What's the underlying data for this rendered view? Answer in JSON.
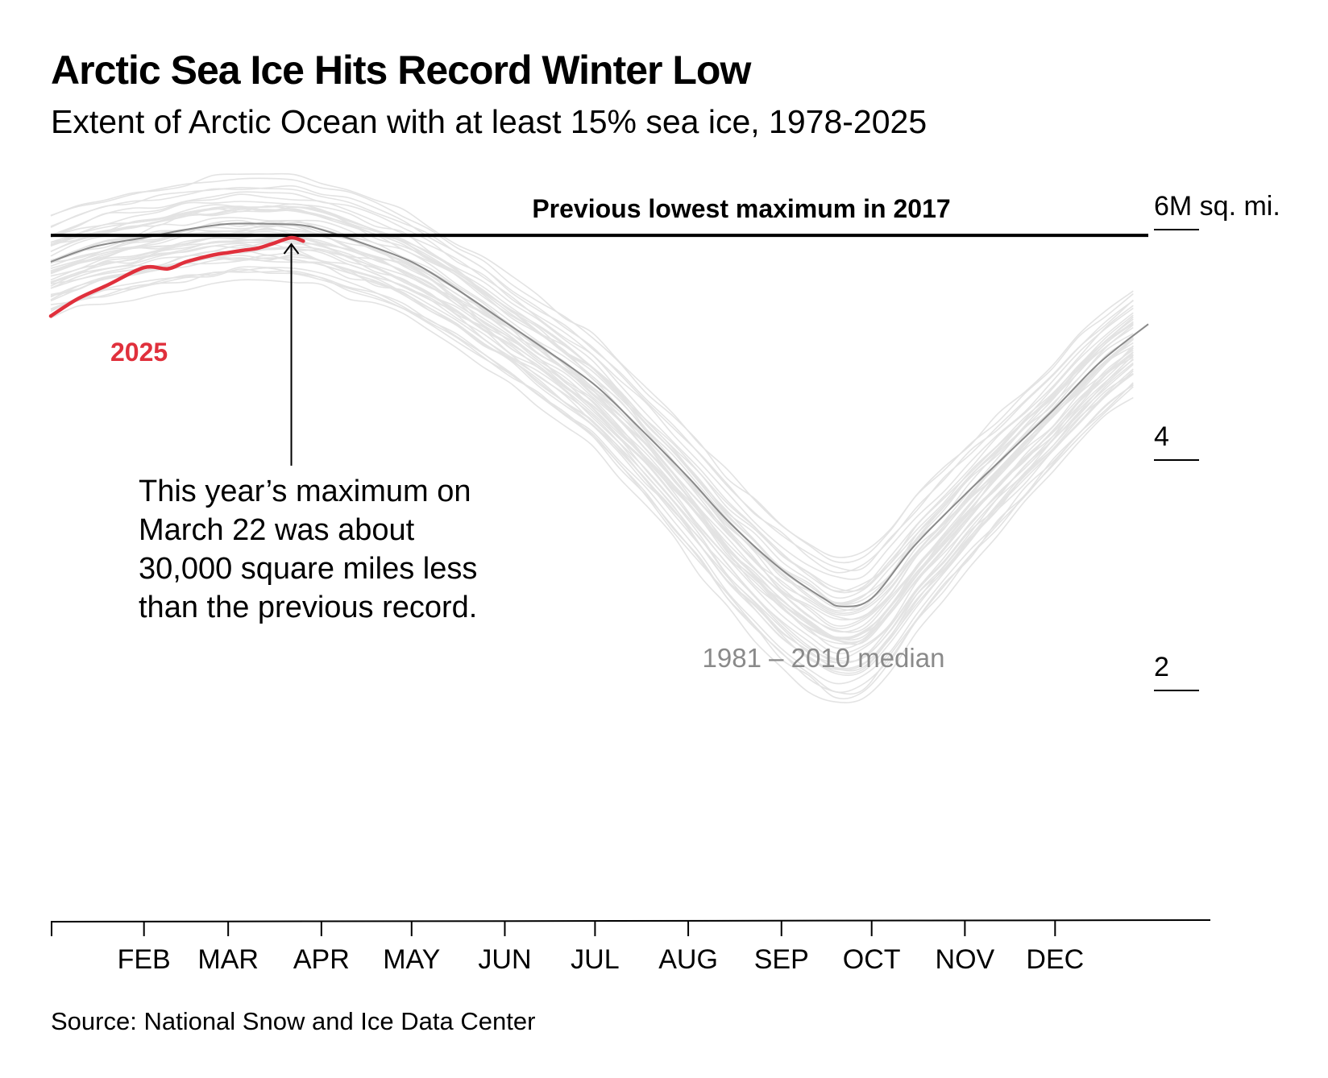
{
  "chart_data": {
    "type": "line",
    "title": "Arctic Sea Ice Hits Record Winter Low",
    "subtitle": "Extent of Arctic Ocean with at least 15% sea ice, 1978-2025",
    "source": "Source: National Snow and Ice Data Center",
    "x_ticks": [
      "FEB",
      "MAR",
      "APR",
      "MAY",
      "JUN",
      "JUL",
      "AUG",
      "SEP",
      "OCT",
      "NOV",
      "DEC"
    ],
    "y_ticks": [
      {
        "value": 6,
        "label": "6M sq. mi."
      },
      {
        "value": 4,
        "label": "4"
      },
      {
        "value": 2,
        "label": "2"
      }
    ],
    "ylim": [
      0,
      6
    ],
    "xlim": [
      1,
      366
    ],
    "median": {
      "name": "1981 – 2010 median",
      "color": "#8a8a8a",
      "x": [
        1,
        15,
        32,
        46,
        60,
        74,
        84,
        91,
        105,
        121,
        135,
        152,
        166,
        182,
        196,
        213,
        227,
        244,
        258,
        264,
        274,
        288,
        305,
        319,
        335,
        350,
        366
      ],
      "y": [
        5.72,
        5.85,
        5.93,
        6.0,
        6.05,
        6.05,
        6.04,
        6.0,
        5.88,
        5.72,
        5.5,
        5.2,
        4.95,
        4.65,
        4.3,
        3.85,
        3.45,
        3.05,
        2.8,
        2.73,
        2.8,
        3.25,
        3.7,
        4.05,
        4.45,
        4.85,
        5.18
      ]
    },
    "highlight": {
      "name": "2025",
      "color": "#e0303c",
      "x": [
        1,
        10,
        20,
        32,
        40,
        46,
        55,
        60,
        65,
        70,
        75,
        81,
        85
      ],
      "y": [
        5.25,
        5.4,
        5.52,
        5.67,
        5.66,
        5.72,
        5.78,
        5.8,
        5.82,
        5.84,
        5.88,
        5.93,
        5.9
      ]
    },
    "reference_line": {
      "label": "Previous lowest maximum in 2017",
      "value": 5.95
    },
    "annotation": {
      "lines": [
        "This year’s maximum on",
        "March 22 was about",
        "30,000 square miles less",
        "than the previous record."
      ],
      "points_to": {
        "x": 81,
        "y": 5.93
      }
    },
    "historical_years_color": "#e3e3e3",
    "historical_year_range": "1978-2024",
    "grid": false
  }
}
